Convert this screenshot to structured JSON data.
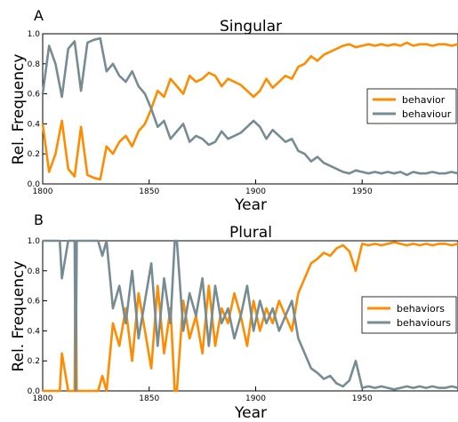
{
  "chart_data": [
    {
      "panel": "A",
      "type": "line",
      "title": "Singular",
      "xlabel": "Year",
      "ylabel": "Rel. Frequency",
      "xlim": [
        1800,
        1995
      ],
      "ylim": [
        0,
        1.0
      ],
      "xticks": [
        1800,
        1850,
        1900,
        1950
      ],
      "yticks": [
        0.0,
        0.2,
        0.4,
        0.6,
        0.8,
        1.0
      ],
      "grid": false,
      "legend_position": "right",
      "x": [
        1800,
        1803,
        1806,
        1809,
        1812,
        1815,
        1818,
        1821,
        1824,
        1827,
        1830,
        1833,
        1836,
        1839,
        1842,
        1845,
        1848,
        1851,
        1854,
        1857,
        1860,
        1863,
        1866,
        1869,
        1872,
        1875,
        1878,
        1881,
        1884,
        1887,
        1890,
        1893,
        1896,
        1899,
        1902,
        1905,
        1908,
        1911,
        1914,
        1917,
        1920,
        1923,
        1926,
        1929,
        1932,
        1935,
        1938,
        1941,
        1944,
        1947,
        1950,
        1953,
        1956,
        1959,
        1962,
        1965,
        1968,
        1971,
        1974,
        1977,
        1980,
        1983,
        1986,
        1989,
        1992,
        1995
      ],
      "series": [
        {
          "name": "behavior",
          "color": "#ff8c00",
          "values": [
            0.4,
            0.08,
            0.2,
            0.42,
            0.1,
            0.05,
            0.38,
            0.06,
            0.04,
            0.03,
            0.25,
            0.2,
            0.28,
            0.32,
            0.25,
            0.35,
            0.4,
            0.5,
            0.62,
            0.58,
            0.7,
            0.65,
            0.6,
            0.72,
            0.68,
            0.7,
            0.74,
            0.72,
            0.65,
            0.7,
            0.68,
            0.66,
            0.62,
            0.58,
            0.62,
            0.7,
            0.64,
            0.68,
            0.72,
            0.7,
            0.78,
            0.8,
            0.85,
            0.82,
            0.86,
            0.88,
            0.9,
            0.92,
            0.93,
            0.91,
            0.92,
            0.93,
            0.92,
            0.93,
            0.92,
            0.93,
            0.92,
            0.94,
            0.92,
            0.93,
            0.93,
            0.92,
            0.93,
            0.93,
            0.92,
            0.93
          ]
        },
        {
          "name": "behaviour",
          "color": "#778c92",
          "values": [
            0.6,
            0.92,
            0.8,
            0.58,
            0.9,
            0.95,
            0.62,
            0.94,
            0.96,
            0.97,
            0.75,
            0.8,
            0.72,
            0.68,
            0.75,
            0.65,
            0.6,
            0.5,
            0.38,
            0.42,
            0.3,
            0.35,
            0.4,
            0.28,
            0.32,
            0.3,
            0.26,
            0.28,
            0.35,
            0.3,
            0.32,
            0.34,
            0.38,
            0.42,
            0.38,
            0.3,
            0.36,
            0.32,
            0.28,
            0.3,
            0.22,
            0.2,
            0.15,
            0.18,
            0.14,
            0.12,
            0.1,
            0.08,
            0.07,
            0.09,
            0.08,
            0.07,
            0.08,
            0.07,
            0.08,
            0.07,
            0.08,
            0.06,
            0.08,
            0.07,
            0.07,
            0.08,
            0.07,
            0.07,
            0.08,
            0.07
          ]
        }
      ]
    },
    {
      "panel": "B",
      "type": "line",
      "title": "Plural",
      "xlabel": "Year",
      "ylabel": "Rel. Frequency",
      "xlim": [
        1800,
        1995
      ],
      "ylim": [
        0,
        1.0
      ],
      "xticks": [
        1800,
        1850,
        1900,
        1950
      ],
      "yticks": [
        0.0,
        0.2,
        0.4,
        0.6,
        0.8,
        1.0
      ],
      "grid": false,
      "legend_position": "right",
      "series": [
        {
          "name": "behaviors",
          "color": "#ff8c00",
          "x": [
            1800,
            1808,
            1809,
            1812,
            1815,
            1815.5,
            1816,
            1817,
            1820,
            1826,
            1828,
            1830,
            1833,
            1836,
            1839,
            1842,
            1845,
            1848,
            1851,
            1854,
            1857,
            1860,
            1862,
            1863,
            1866,
            1869,
            1872,
            1875,
            1878,
            1881,
            1884,
            1887,
            1890,
            1893,
            1896,
            1899,
            1902,
            1905,
            1908,
            1911,
            1914,
            1917,
            1920,
            1923,
            1926,
            1929,
            1932,
            1935,
            1938,
            1941,
            1944,
            1947,
            1950,
            1953,
            1956,
            1959,
            1962,
            1965,
            1968,
            1971,
            1974,
            1977,
            1980,
            1983,
            1986,
            1989,
            1992,
            1995
          ],
          "values": [
            0.0,
            0.0,
            0.25,
            0.0,
            0.0,
            1.0,
            0.0,
            0.0,
            0.0,
            0.0,
            0.1,
            0.0,
            0.45,
            0.3,
            0.55,
            0.2,
            0.65,
            0.4,
            0.15,
            0.7,
            0.25,
            0.55,
            0.0,
            0.0,
            0.6,
            0.35,
            0.5,
            0.25,
            0.7,
            0.3,
            0.55,
            0.45,
            0.65,
            0.5,
            0.3,
            0.6,
            0.4,
            0.55,
            0.45,
            0.6,
            0.5,
            0.4,
            0.65,
            0.75,
            0.85,
            0.88,
            0.92,
            0.9,
            0.95,
            0.97,
            0.93,
            0.8,
            0.98,
            0.97,
            0.98,
            0.97,
            0.98,
            0.99,
            0.98,
            0.97,
            0.98,
            0.97,
            0.98,
            0.97,
            0.98,
            0.98,
            0.97,
            0.98
          ]
        },
        {
          "name": "behaviours",
          "color": "#778c92",
          "x": [
            1800,
            1803,
            1806,
            1808,
            1809,
            1812,
            1815,
            1815.5,
            1816,
            1817,
            1820,
            1826,
            1828,
            1830,
            1833,
            1836,
            1839,
            1842,
            1845,
            1848,
            1851,
            1854,
            1857,
            1860,
            1862,
            1863,
            1866,
            1869,
            1872,
            1875,
            1878,
            1881,
            1884,
            1887,
            1890,
            1893,
            1896,
            1899,
            1902,
            1905,
            1908,
            1911,
            1914,
            1917,
            1920,
            1923,
            1926,
            1929,
            1932,
            1935,
            1938,
            1941,
            1944,
            1947,
            1950,
            1953,
            1956,
            1959,
            1962,
            1965,
            1968,
            1971,
            1974,
            1977,
            1980,
            1983,
            1986,
            1989,
            1992,
            1995
          ],
          "values": [
            1.0,
            1.0,
            1.0,
            1.0,
            0.75,
            1.0,
            1.0,
            0.0,
            1.0,
            1.0,
            1.0,
            1.0,
            0.9,
            1.0,
            0.55,
            0.7,
            0.45,
            0.8,
            0.35,
            0.6,
            0.85,
            0.3,
            0.75,
            0.45,
            1.0,
            1.0,
            0.4,
            0.65,
            0.5,
            0.75,
            0.3,
            0.7,
            0.45,
            0.55,
            0.35,
            0.5,
            0.7,
            0.4,
            0.6,
            0.45,
            0.55,
            0.4,
            0.5,
            0.6,
            0.35,
            0.25,
            0.15,
            0.12,
            0.08,
            0.1,
            0.05,
            0.03,
            0.07,
            0.2,
            0.02,
            0.03,
            0.02,
            0.03,
            0.02,
            0.01,
            0.02,
            0.03,
            0.02,
            0.03,
            0.02,
            0.03,
            0.02,
            0.02,
            0.03,
            0.02
          ]
        }
      ]
    }
  ]
}
